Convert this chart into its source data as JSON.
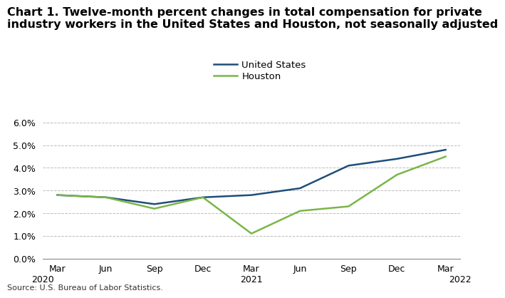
{
  "title": "Chart 1. Twelve-month percent changes in total compensation for private\nindustry workers in the United States and Houston, not seasonally adjusted",
  "source": "Source: U.S. Bureau of Labor Statistics.",
  "x_labels_top": [
    "Mar",
    "Jun",
    "Sep",
    "Dec",
    "Mar",
    "Jun",
    "Sep",
    "Dec",
    "Mar"
  ],
  "x_labels_bottom": [
    "2020",
    "",
    "",
    "",
    "2021",
    "",
    "",
    "",
    "2022"
  ],
  "us_values": [
    2.8,
    2.7,
    2.4,
    2.7,
    2.8,
    3.1,
    4.1,
    4.4,
    4.8
  ],
  "houston_values": [
    2.8,
    2.7,
    2.2,
    2.7,
    1.1,
    2.1,
    2.3,
    3.7,
    4.5
  ],
  "us_color": "#1f4e79",
  "houston_color": "#7ab648",
  "ylim_min": 0.0,
  "ylim_max": 6.5,
  "yticks": [
    0.0,
    1.0,
    2.0,
    3.0,
    4.0,
    5.0,
    6.0
  ],
  "ytick_labels": [
    "0.0%",
    "1.0%",
    "2.0%",
    "3.0%",
    "4.0%",
    "5.0%",
    "6.0%"
  ],
  "legend_labels": [
    "United States",
    "Houston"
  ],
  "background_color": "#ffffff",
  "grid_color": "#bbbbbb",
  "line_width": 1.8,
  "title_fontsize": 11.5,
  "tick_fontsize": 9,
  "legend_fontsize": 9.5,
  "source_fontsize": 8
}
